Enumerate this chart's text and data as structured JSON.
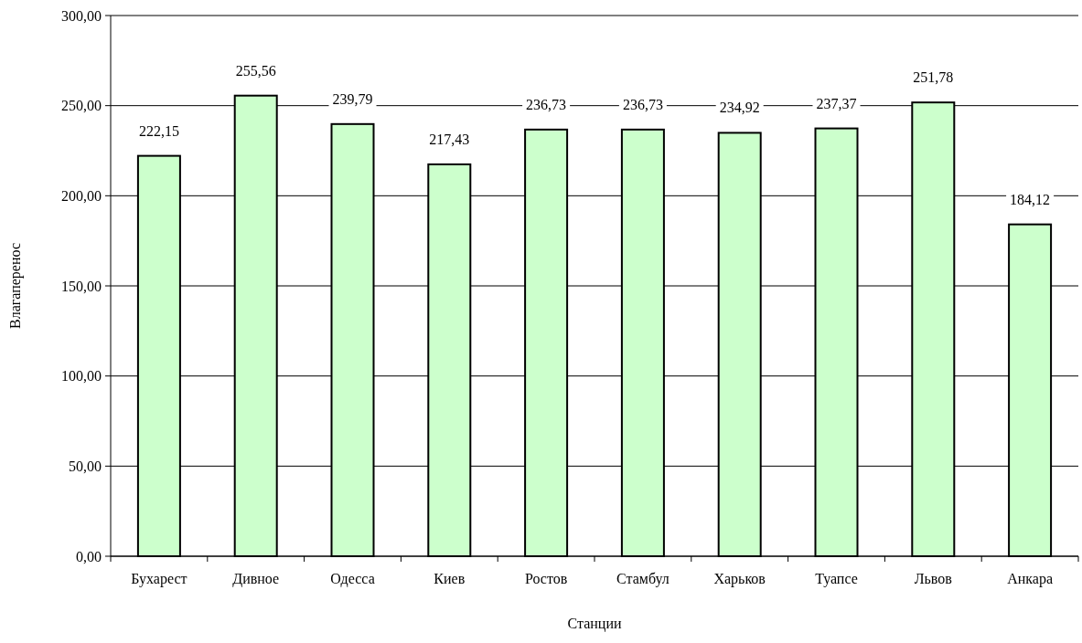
{
  "chart_data": {
    "type": "bar",
    "xlabel": "Станции",
    "ylabel": "Влагаперенос",
    "categories": [
      "Бухарест",
      "Дивное",
      "Одесса",
      "Киев",
      "Ростов",
      "Стамбул",
      "Харьков",
      "Туапсе",
      "Львов",
      "Анкара"
    ],
    "values": [
      222.15,
      255.56,
      239.79,
      217.43,
      236.73,
      236.73,
      234.92,
      237.37,
      251.78,
      184.12
    ],
    "value_labels": [
      "222,15",
      "255,56",
      "239,79",
      "217,43",
      "236,73",
      "236,73",
      "234,92",
      "237,37",
      "251,78",
      "184,12"
    ],
    "color": "#ccffcc",
    "ylim": [
      0,
      300
    ],
    "yticks": [
      {
        "value": 0,
        "label": "0,00"
      },
      {
        "value": 50,
        "label": "50,00"
      },
      {
        "value": 100,
        "label": "100,00"
      },
      {
        "value": 150,
        "label": "150,00"
      },
      {
        "value": 200,
        "label": "200,00"
      },
      {
        "value": 250,
        "label": "250,00"
      },
      {
        "value": 300,
        "label": "300,00"
      }
    ],
    "grid": "y"
  }
}
